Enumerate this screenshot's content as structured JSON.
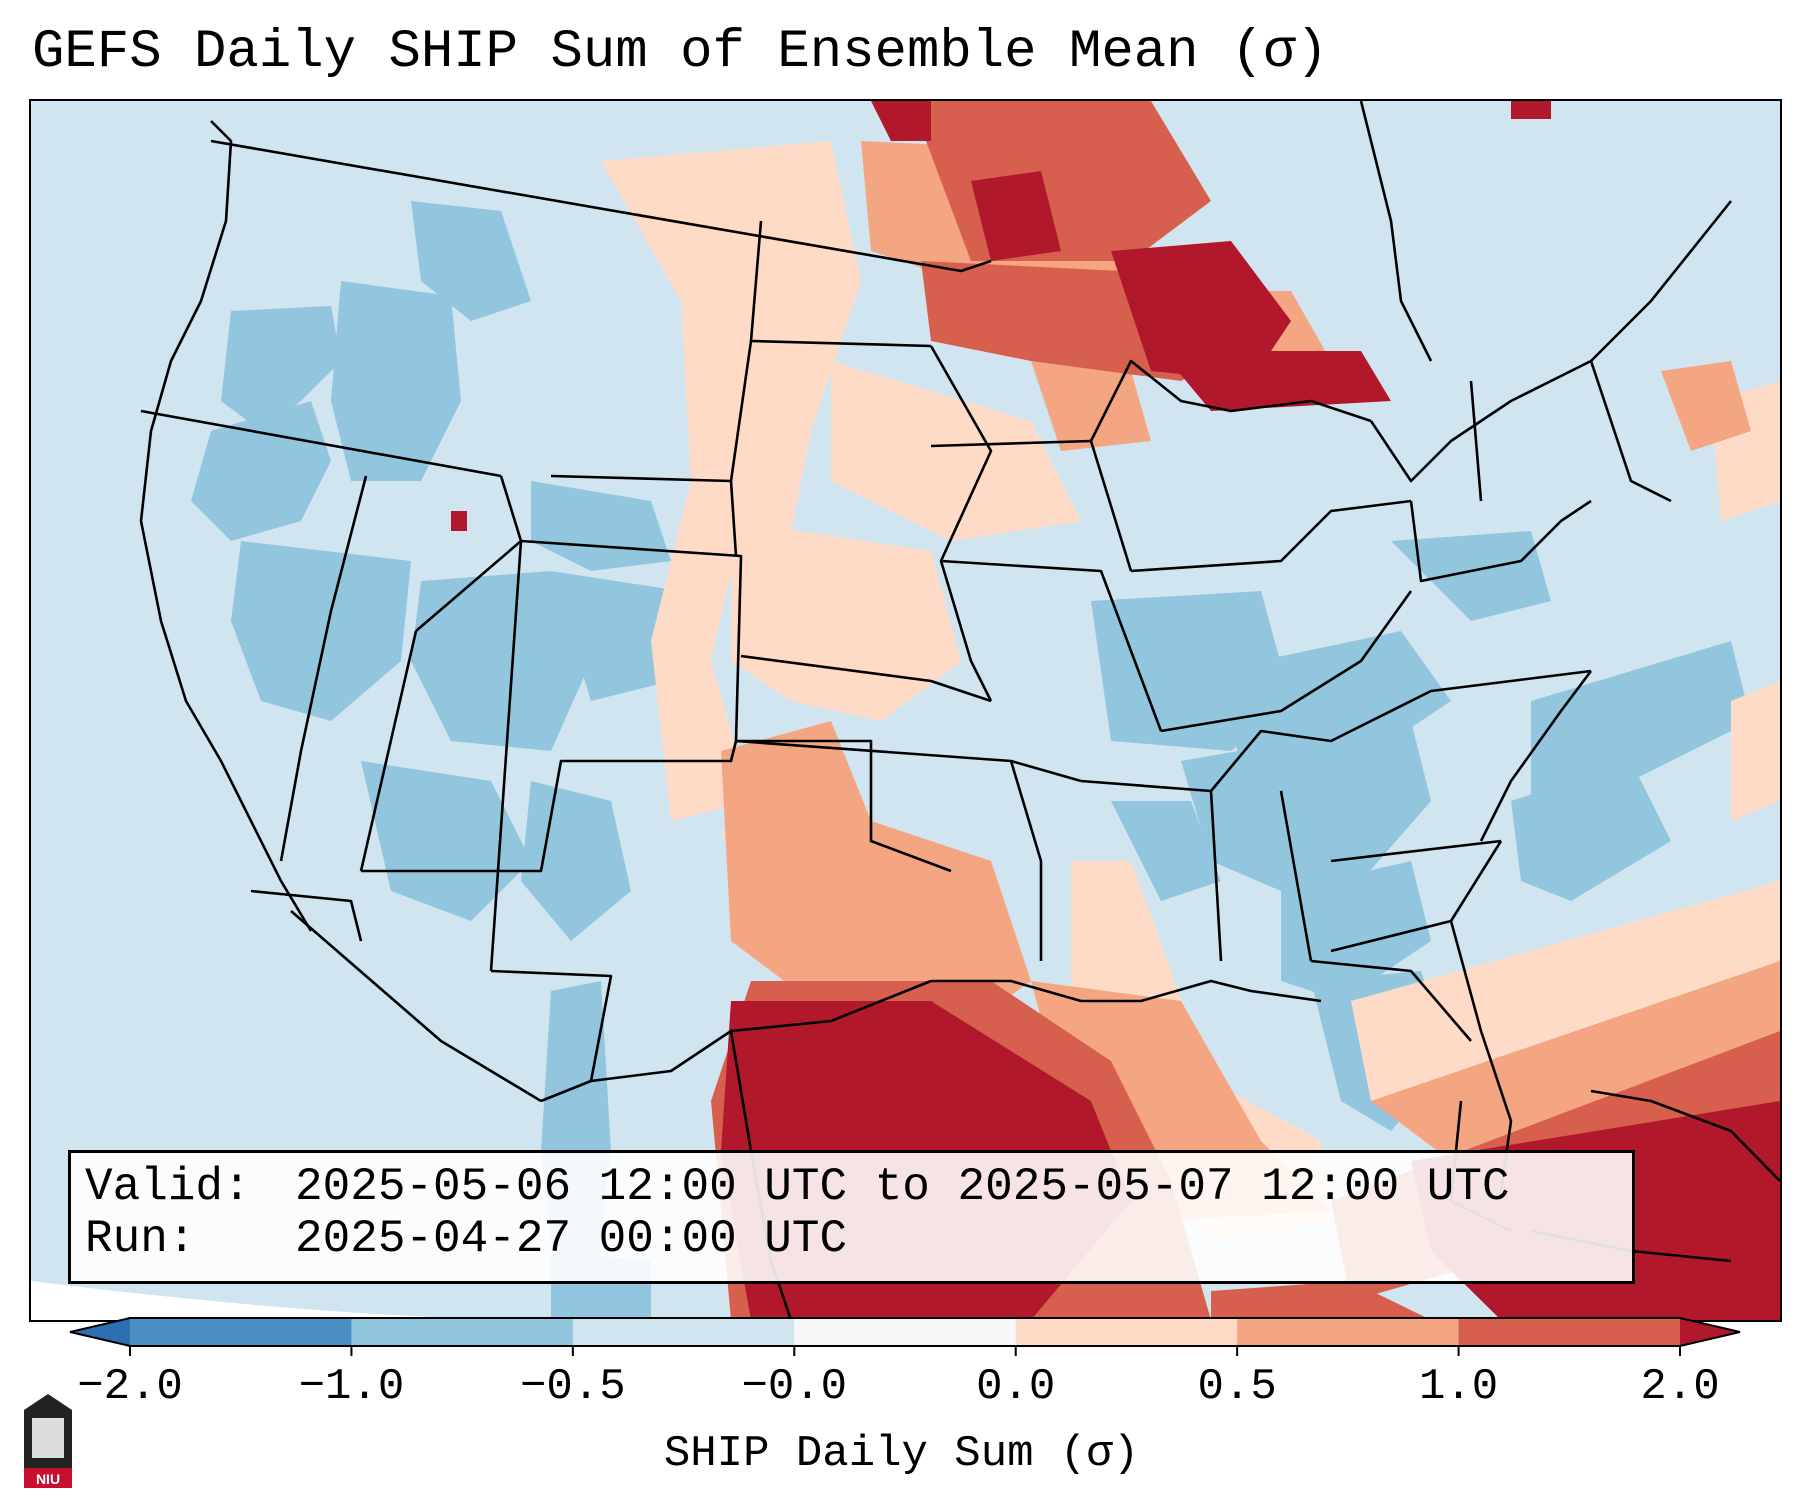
{
  "title": "GEFS Daily SHIP Sum of Ensemble Mean (σ)",
  "info": {
    "valid_label": "Valid:",
    "valid_value": "2025-05-06 12:00 UTC to 2025-05-07 12:00 UTC",
    "run_label": "Run:",
    "run_value": "2025-04-27 00:00 UTC"
  },
  "colorbar": {
    "label": "SHIP Daily Sum (σ)",
    "ticks": [
      "−2.0",
      "−1.0",
      "−0.5",
      "−0.0",
      "0.0",
      "0.5",
      "1.0",
      "2.0"
    ],
    "bins": [
      {
        "range": "< -2.0",
        "color": "#2c6fb2"
      },
      {
        "range": "-2.0 to -1.0",
        "color": "#4a90c4"
      },
      {
        "range": "-1.0 to -0.5",
        "color": "#92c5de"
      },
      {
        "range": "-0.5 to -0.0",
        "color": "#d1e5f0"
      },
      {
        "range": "-0.0 to 0.0",
        "color": "#f7f7f7"
      },
      {
        "range": "0.0 to 0.5",
        "color": "#fddbc7"
      },
      {
        "range": "0.5 to 1.0",
        "color": "#f4a582"
      },
      {
        "range": "1.0 to 2.0",
        "color": "#d6604d"
      },
      {
        "range": "> 2.0",
        "color": "#b2182b"
      }
    ]
  },
  "logo": {
    "text": "NIU",
    "icon": "niu-logo-icon"
  }
}
